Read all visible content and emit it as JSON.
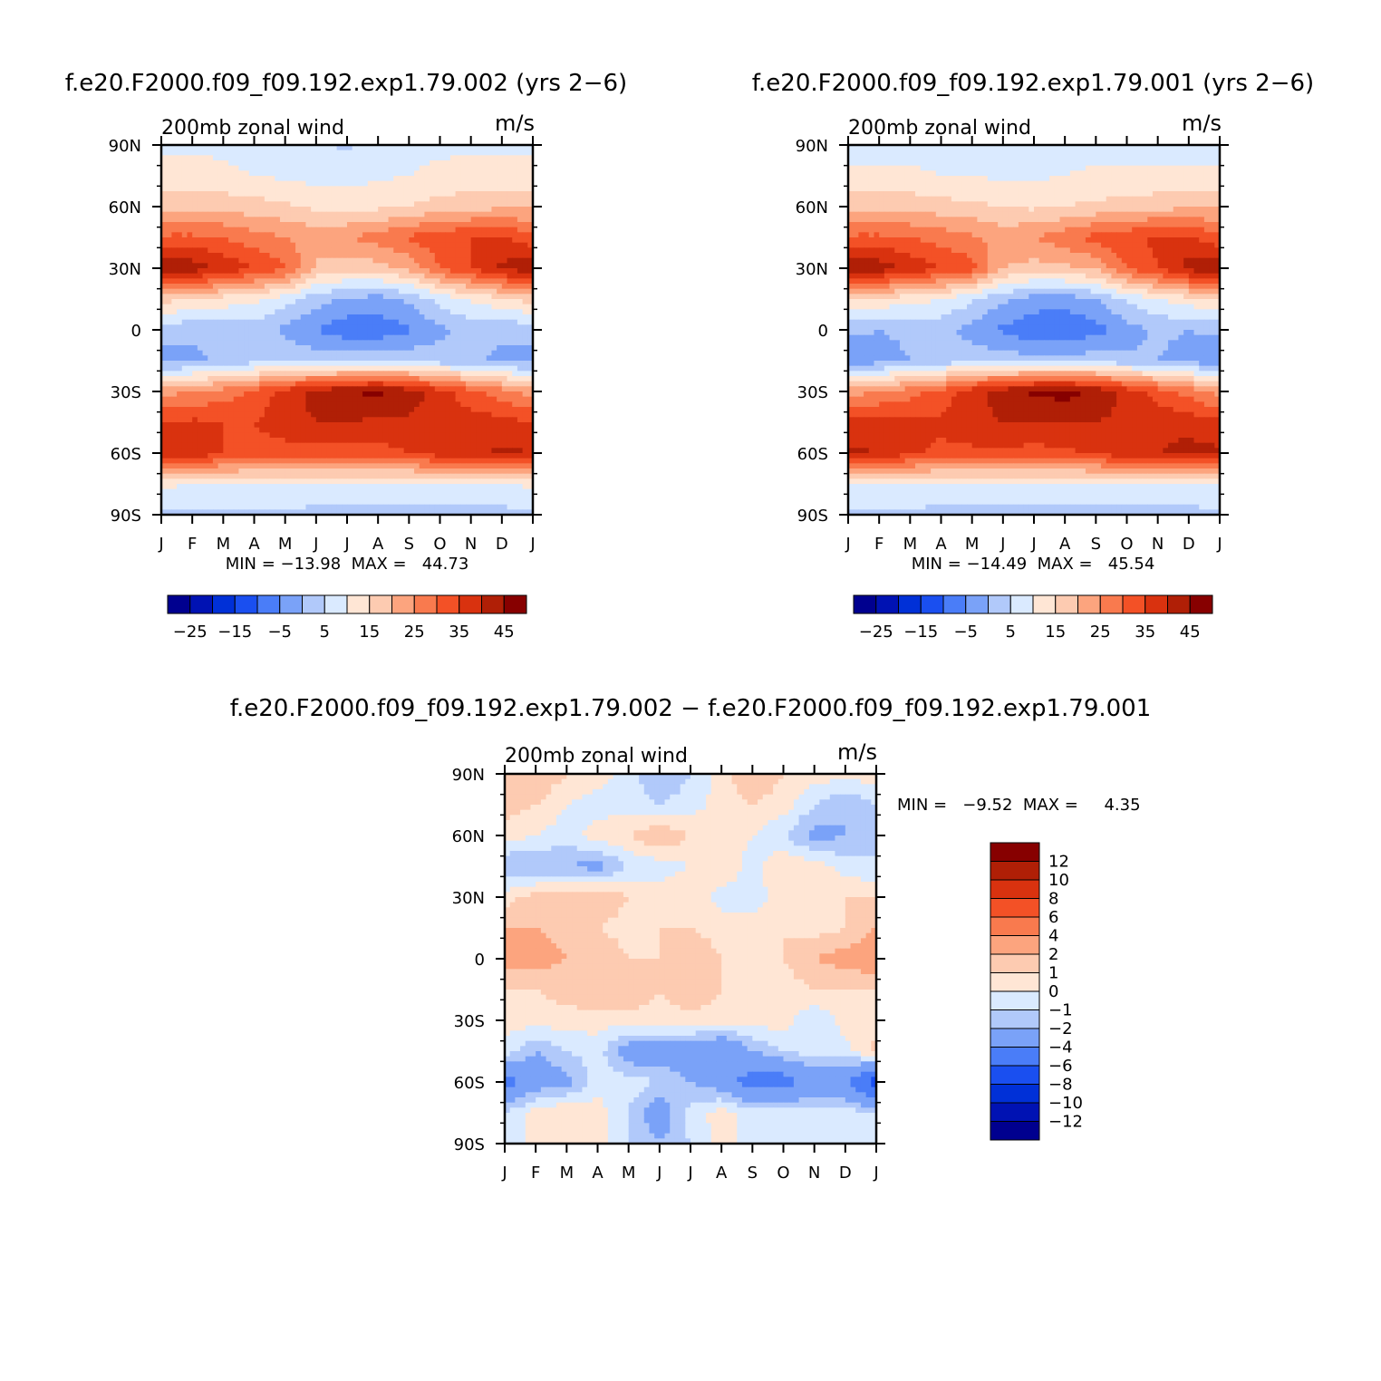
{
  "palette": {
    "wind": [
      "#00008f",
      "#0012b3",
      "#0030d7",
      "#1a4ff0",
      "#4a7df8",
      "#7aa2f8",
      "#b1c9fa",
      "#daeaff",
      "#ffe6d5",
      "#fdcbb1",
      "#fca47e",
      "#f97a4e",
      "#f35126",
      "#d9320f",
      "#b01f06",
      "#870000"
    ],
    "diff": [
      "#00008f",
      "#0012b3",
      "#0030d7",
      "#1a4ff0",
      "#4a7df8",
      "#7aa2f8",
      "#b1c9fa",
      "#daeaff",
      "#ffe6d5",
      "#fdcbb1",
      "#fca47e",
      "#f97a4e",
      "#f35126",
      "#d9320f",
      "#b01f06",
      "#870000"
    ]
  },
  "panels": {
    "exp002": {
      "title": "f.e20.F2000.f09_f09.192.exp1.79.002 (yrs 2−6)",
      "left_label": "200mb zonal wind",
      "right_label": "m/s",
      "stats": "MIN = −13.98  MAX =   44.73"
    },
    "exp001": {
      "title": "f.e20.F2000.f09_f09.192.exp1.79.001 (yrs 2−6)",
      "left_label": "200mb zonal wind",
      "right_label": "m/s",
      "stats": "MIN = −14.49  MAX =   45.54"
    },
    "diff": {
      "title": "f.e20.F2000.f09_f09.192.exp1.79.002 − f.e20.F2000.f09_f09.192.exp1.79.001",
      "left_label": "200mb zonal wind",
      "right_label": "m/s",
      "stats": "MIN =   −9.52  MAX =     4.35"
    }
  },
  "axes": {
    "months": [
      "J",
      "F",
      "M",
      "A",
      "M",
      "J",
      "J",
      "A",
      "S",
      "O",
      "N",
      "D",
      "J"
    ],
    "lat_labels": [
      "90N",
      "60N",
      "30N",
      "0",
      "30S",
      "60S",
      "90S"
    ]
  },
  "colorbars": {
    "wind_labels": [
      "−25",
      "−15",
      "−5",
      "5",
      "15",
      "25",
      "35",
      "45"
    ],
    "diff_labels": [
      "12",
      "10",
      "8",
      "6",
      "4",
      "2",
      "1",
      "0",
      "−1",
      "−2",
      "−4",
      "−6",
      "−8",
      "−10",
      "−12"
    ]
  },
  "chart_data": [
    {
      "type": "heatmap",
      "title": "f.e20.F2000.f09_f09.192.exp1.79.002 (yrs 2−6)",
      "variable": "200mb zonal wind",
      "units": "m/s",
      "x": [
        "J",
        "F",
        "M",
        "A",
        "M",
        "J",
        "J",
        "A",
        "S",
        "O",
        "N",
        "D",
        "J"
      ],
      "y": [
        90,
        75,
        60,
        45,
        30,
        15,
        0,
        -15,
        -30,
        -45,
        -60,
        -75,
        -90
      ],
      "levels": [
        -30,
        -25,
        -20,
        -15,
        -10,
        -5,
        0,
        5,
        10,
        15,
        20,
        25,
        30,
        35,
        40,
        45
      ],
      "z": [
        [
          4,
          4,
          4,
          3,
          2,
          1,
          -1,
          2,
          4,
          4,
          4,
          4,
          4
        ],
        [
          7,
          7,
          6,
          5,
          4,
          3,
          3,
          4,
          5,
          6,
          7,
          7,
          7
        ],
        [
          14,
          14,
          13,
          12,
          11,
          9,
          8,
          9,
          10,
          12,
          13,
          14,
          14
        ],
        [
          26,
          26,
          25,
          22,
          20,
          18,
          20,
          22,
          26,
          28,
          30,
          31,
          26
        ],
        [
          39,
          38,
          34,
          30,
          26,
          14,
          12,
          13,
          16,
          25,
          30,
          36,
          39
        ],
        [
          12,
          10,
          8,
          6,
          2,
          -3,
          -6,
          -7,
          -4,
          2,
          6,
          9,
          12
        ],
        [
          -3,
          -4,
          -3,
          -2,
          -6,
          -10,
          -13,
          -13,
          -11,
          -6,
          -3,
          -4,
          -3
        ],
        [
          -7,
          -6,
          -4,
          -2,
          -1,
          -2,
          -2,
          -2,
          -1,
          -3,
          -4,
          -6,
          -7
        ],
        [
          18,
          20,
          22,
          26,
          32,
          37,
          40,
          41,
          38,
          32,
          27,
          22,
          18
        ],
        [
          30,
          31,
          30,
          30,
          33,
          35,
          35,
          34,
          34,
          33,
          32,
          32,
          30
        ],
        [
          35,
          34,
          30,
          28,
          28,
          28,
          27,
          28,
          30,
          33,
          34,
          36,
          35
        ],
        [
          6,
          5,
          5,
          5,
          5,
          5,
          5,
          4,
          4,
          5,
          5,
          5,
          6
        ],
        [
          -1,
          -1,
          -1,
          -1,
          -1,
          -2,
          -2,
          -2,
          -2,
          -2,
          -2,
          -2,
          -1
        ]
      ],
      "min": -13.98,
      "max": 44.73
    },
    {
      "type": "heatmap",
      "title": "f.e20.F2000.f09_f09.192.exp1.79.001 (yrs 2−6)",
      "variable": "200mb zonal wind",
      "units": "m/s",
      "x": [
        "J",
        "F",
        "M",
        "A",
        "M",
        "J",
        "J",
        "A",
        "S",
        "O",
        "N",
        "D",
        "J"
      ],
      "y": [
        90,
        75,
        60,
        45,
        30,
        15,
        0,
        -15,
        -30,
        -45,
        -60,
        -75,
        -90
      ],
      "levels": [
        -30,
        -25,
        -20,
        -15,
        -10,
        -5,
        0,
        5,
        10,
        15,
        20,
        25,
        30,
        35,
        40,
        45
      ],
      "z": [
        [
          3,
          3,
          3,
          3,
          2,
          2,
          1,
          2,
          3,
          3,
          3,
          3,
          3
        ],
        [
          6,
          6,
          6,
          5,
          5,
          4,
          4,
          5,
          6,
          6,
          6,
          6,
          6
        ],
        [
          14,
          14,
          13,
          12,
          11,
          10,
          9,
          10,
          11,
          12,
          13,
          14,
          14
        ],
        [
          26,
          26,
          25,
          23,
          21,
          18,
          20,
          23,
          27,
          29,
          31,
          31,
          26
        ],
        [
          40,
          38,
          34,
          30,
          27,
          15,
          13,
          14,
          16,
          25,
          30,
          37,
          40
        ],
        [
          11,
          9,
          7,
          5,
          1,
          -4,
          -7,
          -8,
          -5,
          1,
          5,
          8,
          11
        ],
        [
          -4,
          -5,
          -4,
          -3,
          -7,
          -11,
          -14,
          -14,
          -12,
          -7,
          -4,
          -5,
          -4
        ],
        [
          -8,
          -7,
          -5,
          -3,
          -2,
          -2,
          -3,
          -3,
          -2,
          -4,
          -5,
          -7,
          -8
        ],
        [
          18,
          20,
          23,
          27,
          33,
          38,
          41,
          42,
          39,
          33,
          28,
          23,
          18
        ],
        [
          31,
          32,
          31,
          31,
          33,
          35,
          35,
          35,
          35,
          34,
          33,
          33,
          31
        ],
        [
          36,
          35,
          31,
          29,
          29,
          29,
          28,
          29,
          31,
          34,
          35,
          37,
          36
        ],
        [
          5,
          5,
          5,
          4,
          4,
          4,
          4,
          4,
          4,
          4,
          4,
          5,
          5
        ],
        [
          -1,
          -1,
          -1,
          -2,
          -2,
          -2,
          -2,
          -2,
          -2,
          -2,
          -2,
          -2,
          -1
        ]
      ],
      "min": -14.49,
      "max": 45.54
    },
    {
      "type": "heatmap",
      "title": "f.e20.F2000.f09_f09.192.exp1.79.002 − f.e20.F2000.f09_f09.192.exp1.79.001",
      "variable": "200mb zonal wind",
      "units": "m/s",
      "x": [
        "J",
        "F",
        "M",
        "A",
        "M",
        "J",
        "J",
        "A",
        "S",
        "O",
        "N",
        "D",
        "J"
      ],
      "y": [
        90,
        75,
        60,
        45,
        30,
        15,
        0,
        -15,
        -30,
        -45,
        -60,
        -75,
        -90
      ],
      "levels": [
        -12,
        -10,
        -8,
        -6,
        -4,
        -2,
        -1,
        0,
        1,
        2,
        4,
        6,
        8,
        10,
        12
      ],
      "z": [
        [
          2,
          2,
          1,
          0.5,
          -0.5,
          -2,
          -1,
          0.5,
          2,
          1,
          0.5,
          0.5,
          0.5
        ],
        [
          1.5,
          1,
          0,
          -0.5,
          -0.5,
          -1,
          -0.5,
          0.5,
          1,
          0.5,
          -1,
          -2,
          -1
        ],
        [
          0.5,
          0,
          -0.5,
          0.5,
          1,
          2,
          1,
          0.5,
          0,
          -1,
          -2.5,
          -2,
          -1
        ],
        [
          -2,
          -2,
          -2,
          -2.5,
          -1,
          -0.5,
          0,
          1,
          -0.5,
          1,
          0.5,
          -0.5,
          -1
        ],
        [
          0.5,
          1.5,
          2,
          2,
          1,
          0.5,
          1,
          -0.5,
          -0.5,
          0.5,
          1,
          1,
          1
        ],
        [
          2,
          2,
          1.5,
          1,
          0.5,
          1,
          1,
          0.5,
          0.5,
          1,
          0.5,
          1,
          2
        ],
        [
          2.5,
          2.5,
          2,
          2,
          1,
          1,
          2,
          1,
          0.5,
          1,
          2,
          2.5,
          3
        ],
        [
          1,
          1,
          1.5,
          2,
          2,
          1,
          2,
          1,
          1,
          0.5,
          1,
          1,
          1
        ],
        [
          0.5,
          0.5,
          0.5,
          0.5,
          0.5,
          0.5,
          0.5,
          0.5,
          0.5,
          0.5,
          -1,
          0.5,
          0.5
        ],
        [
          -0.5,
          -2,
          -1,
          -0.5,
          -3,
          -3,
          -3,
          -4,
          -2,
          -1,
          -0.5,
          -0.5,
          1.5
        ],
        [
          -5,
          -3,
          -2.5,
          -0.5,
          -0.5,
          -1,
          -2,
          -3,
          -5,
          -5,
          -3,
          -4,
          -7
        ],
        [
          -1,
          0.5,
          1,
          0.5,
          -1,
          -3,
          -0.5,
          0.5,
          -0.5,
          -0.5,
          -0.5,
          -0.5,
          -1
        ],
        [
          -1,
          0.5,
          0.5,
          0.5,
          -1,
          -2,
          -1,
          0.5,
          -0.5,
          -0.5,
          -0.5,
          -0.5,
          -0.5
        ]
      ],
      "min": -9.52,
      "max": 4.35
    }
  ]
}
